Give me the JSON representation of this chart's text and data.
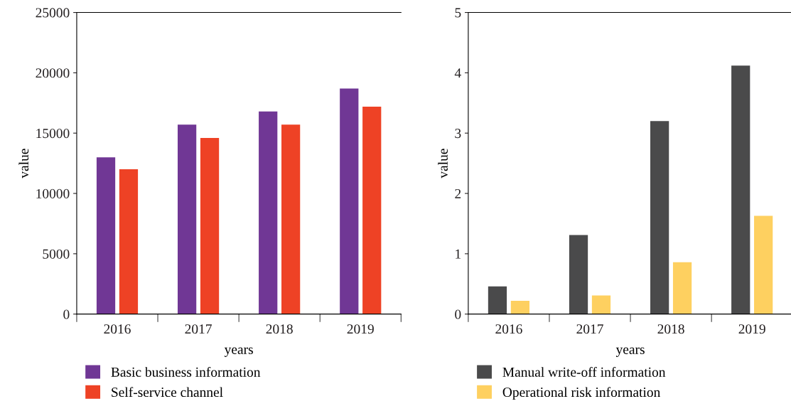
{
  "chart_data": [
    {
      "type": "bar",
      "categories": [
        "2016",
        "2017",
        "2018",
        "2019"
      ],
      "xlabel": "years",
      "ylabel": "value",
      "ylim": [
        0,
        25000
      ],
      "yticks": [
        0,
        5000,
        10000,
        15000,
        20000,
        25000
      ],
      "legend": "bottom",
      "grid": false,
      "series": [
        {
          "name": "Basic business information",
          "color": "#703795",
          "values": [
            13000,
            15700,
            16800,
            18700
          ]
        },
        {
          "name": "Self-service channel",
          "color": "#ee4225",
          "values": [
            12000,
            14600,
            15700,
            17200
          ]
        }
      ]
    },
    {
      "type": "bar",
      "categories": [
        "2016",
        "2017",
        "2018",
        "2019"
      ],
      "xlabel": "years",
      "ylabel": "value",
      "ylim": [
        0,
        5
      ],
      "yticks": [
        0,
        1,
        2,
        3,
        4,
        5
      ],
      "legend": "bottom",
      "grid": false,
      "series": [
        {
          "name": "Manual write-off information",
          "color": "#4a4a4b",
          "values": [
            0.46,
            1.31,
            3.2,
            4.12
          ]
        },
        {
          "name": "Operational risk information",
          "color": "#fed060",
          "values": [
            0.22,
            0.31,
            0.86,
            1.63
          ]
        }
      ]
    }
  ]
}
